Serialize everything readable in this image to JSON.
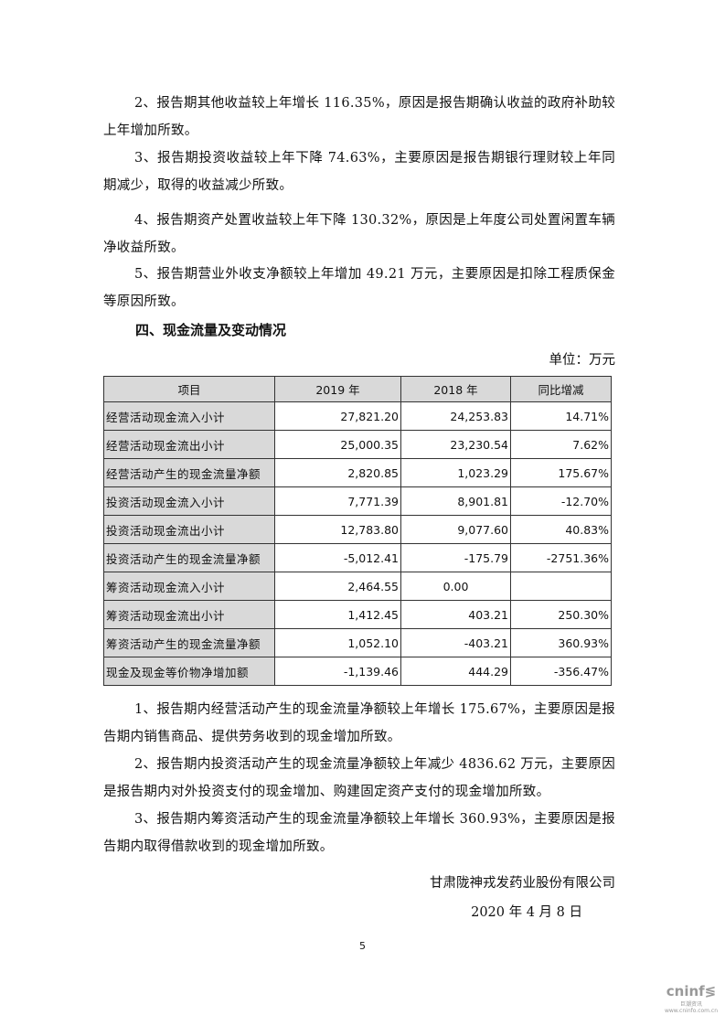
{
  "paragraphs_top": [
    "2、报告期其他收益较上年增长 116.35%，原因是报告期确认收益的政府补助较上年增加所致。",
    "3、报告期投资收益较上年下降 74.63%，主要原因是报告期银行理财较上年同期减少，取得的收益减少所致。",
    "4、报告期资产处置收益较上年下降 130.32%，原因是上年度公司处置闲置车辆净收益所致。",
    "5、报告期营业外收支净额较上年增加 49.21 万元，主要原因是扣除工程质保金等原因所致。"
  ],
  "section_heading": "四、现金流量及变动情况",
  "unit": "单位：万元",
  "table": {
    "headers": [
      "项目",
      "2019 年",
      "2018 年",
      "同比增减"
    ],
    "rows": [
      [
        "经营活动现金流入小计",
        "27,821.20",
        "24,253.83",
        "14.71%"
      ],
      [
        "经营活动现金流出小计",
        "25,000.35",
        "23,230.54",
        "7.62%"
      ],
      [
        "经营活动产生的现金流量净额",
        "2,820.85",
        "1,023.29",
        "175.67%"
      ],
      [
        "投资活动现金流入小计",
        "7,771.39",
        "8,901.81",
        "-12.70%"
      ],
      [
        "投资活动现金流出小计",
        "12,783.80",
        "9,077.60",
        "40.83%"
      ],
      [
        "投资活动产生的现金流量净额",
        "-5,012.41",
        "-175.79",
        "-2751.36%"
      ],
      [
        "筹资活动现金流入小计",
        "2,464.55",
        "0.00",
        ""
      ],
      [
        "筹资活动现金流出小计",
        "1,412.45",
        "403.21",
        "250.30%"
      ],
      [
        "筹资活动产生的现金流量净额",
        "1,052.10",
        "-403.21",
        "360.93%"
      ],
      [
        "现金及现金等价物净增加额",
        "-1,139.46",
        "444.29",
        "-356.47%"
      ]
    ]
  },
  "paragraphs_bottom": [
    "1、报告期内经营活动产生的现金流量净额较上年增长 175.67%，主要原因是报告期内销售商品、提供劳务收到的现金增加所致。",
    "2、报告期内投资活动产生的现金流量净额较上年减少 4836.62 万元，主要原因是报告期内对外投资支付的现金增加、购建固定资产支付的现金增加所致。",
    "3、报告期内筹资活动产生的现金流量净额较上年增长 360.93%，主要原因是报告期内取得借款收到的现金增加所致。"
  ],
  "company": "甘肃陇神戎发药业股份有限公司",
  "date": "2020 年 4 月 8 日",
  "page_number": "5",
  "watermark": {
    "brand": "cninf",
    "cn": "巨潮资讯",
    "url": "www.cninfo.com.cn"
  }
}
